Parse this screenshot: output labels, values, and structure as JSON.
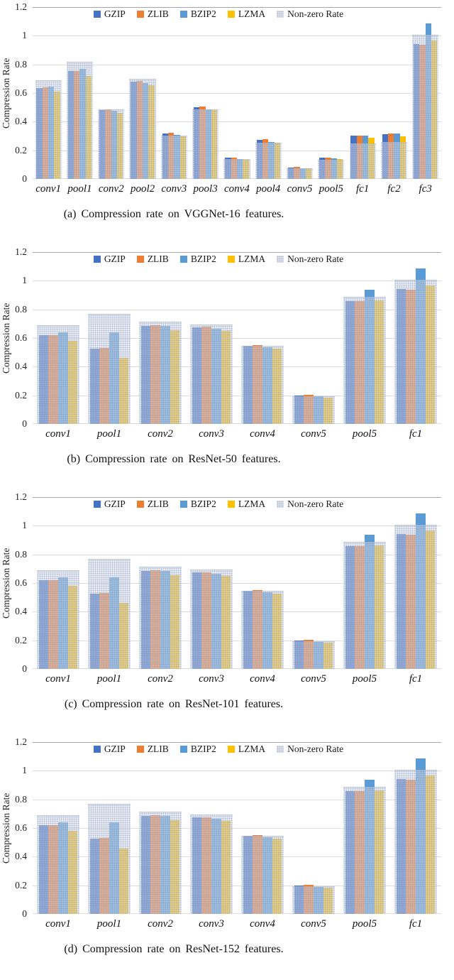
{
  "y_axis": {
    "title": "Compression Rate",
    "tick_labels": [
      "0",
      "0.2",
      "0.4",
      "0.6",
      "0.8",
      "1",
      "1.2"
    ],
    "tick_values": [
      0,
      0.2,
      0.4,
      0.6,
      0.8,
      1,
      1.2
    ],
    "max": 1.2
  },
  "legend": [
    {
      "name": "GZIP",
      "color": "#4472C4"
    },
    {
      "name": "ZLIB",
      "color": "#ED7D31"
    },
    {
      "name": "BZIP2",
      "color": "#5B9BD5"
    },
    {
      "name": "LZMA",
      "color": "#FFC000"
    },
    {
      "name": "Non-zero Rate",
      "color": "#DDE2EC"
    }
  ],
  "chart_data": [
    {
      "type": "bar",
      "id": "a",
      "caption": "(a) Compression rate on VGGNet-16 features.",
      "ylabel": "Compression Rate",
      "ylim": [
        0,
        1.2
      ],
      "legend_position": "top",
      "grid": true,
      "categories": [
        "conv1",
        "pool1",
        "conv2",
        "pool2",
        "conv3",
        "pool3",
        "conv4",
        "pool4",
        "conv5",
        "pool5",
        "fc1",
        "fc2",
        "fc3"
      ],
      "series": [
        {
          "name": "GZIP",
          "values": [
            0.635,
            0.755,
            0.48,
            0.68,
            0.315,
            0.5,
            0.148,
            0.272,
            0.08,
            0.148,
            0.303,
            0.313,
            0.94
          ]
        },
        {
          "name": "ZLIB",
          "values": [
            0.638,
            0.752,
            0.486,
            0.686,
            0.32,
            0.505,
            0.151,
            0.278,
            0.083,
            0.15,
            0.304,
            0.316,
            0.936
          ]
        },
        {
          "name": "BZIP2",
          "values": [
            0.645,
            0.768,
            0.476,
            0.671,
            0.306,
            0.487,
            0.141,
            0.257,
            0.075,
            0.142,
            0.305,
            0.315,
            1.085
          ]
        },
        {
          "name": "LZMA",
          "values": [
            0.608,
            0.718,
            0.462,
            0.655,
            0.298,
            0.48,
            0.136,
            0.252,
            0.072,
            0.139,
            0.287,
            0.298,
            0.965
          ]
        },
        {
          "name": "Non-zero Rate",
          "values": [
            0.685,
            0.815,
            0.48,
            0.695,
            0.3,
            0.48,
            0.135,
            0.25,
            0.07,
            0.13,
            0.243,
            0.255,
            1.0
          ]
        }
      ]
    },
    {
      "type": "bar",
      "id": "b",
      "caption": "(b) Compression rate on ResNet-50 features.",
      "ylabel": "Compression Rate",
      "ylim": [
        0,
        1.2
      ],
      "legend_position": "top",
      "grid": true,
      "categories": [
        "conv1",
        "pool1",
        "conv2",
        "conv3",
        "conv4",
        "conv5",
        "pool5",
        "fc1"
      ],
      "series": [
        {
          "name": "GZIP",
          "values": [
            0.62,
            0.528,
            0.685,
            0.675,
            0.547,
            0.2,
            0.858,
            0.94
          ]
        },
        {
          "name": "ZLIB",
          "values": [
            0.621,
            0.529,
            0.687,
            0.677,
            0.55,
            0.205,
            0.857,
            0.939
          ]
        },
        {
          "name": "BZIP2",
          "values": [
            0.64,
            0.64,
            0.684,
            0.667,
            0.537,
            0.191,
            0.935,
            1.085
          ]
        },
        {
          "name": "LZMA",
          "values": [
            0.58,
            0.46,
            0.654,
            0.65,
            0.527,
            0.184,
            0.862,
            0.965
          ]
        },
        {
          "name": "Non-zero Rate",
          "values": [
            0.685,
            0.765,
            0.71,
            0.69,
            0.54,
            0.19,
            0.885,
            1.0
          ]
        }
      ]
    },
    {
      "type": "bar",
      "id": "c",
      "caption": "(c) Compression rate on ResNet-101 features.",
      "ylabel": "Compression Rate",
      "ylim": [
        0,
        1.2
      ],
      "legend_position": "top",
      "grid": true,
      "categories": [
        "conv1",
        "pool1",
        "conv2",
        "conv3",
        "conv4",
        "conv5",
        "pool5",
        "fc1"
      ],
      "series": [
        {
          "name": "GZIP",
          "values": [
            0.618,
            0.528,
            0.685,
            0.674,
            0.546,
            0.199,
            0.858,
            0.94
          ]
        },
        {
          "name": "ZLIB",
          "values": [
            0.62,
            0.529,
            0.687,
            0.676,
            0.549,
            0.204,
            0.856,
            0.939
          ]
        },
        {
          "name": "BZIP2",
          "values": [
            0.64,
            0.64,
            0.683,
            0.666,
            0.536,
            0.19,
            0.935,
            1.085
          ]
        },
        {
          "name": "LZMA",
          "values": [
            0.58,
            0.46,
            0.653,
            0.649,
            0.527,
            0.183,
            0.861,
            0.965
          ]
        },
        {
          "name": "Non-zero Rate",
          "values": [
            0.685,
            0.765,
            0.708,
            0.688,
            0.54,
            0.19,
            0.885,
            1.0
          ]
        }
      ]
    },
    {
      "type": "bar",
      "id": "d",
      "caption": "(d) Compression rate on ResNet-152 features.",
      "ylabel": "Compression Rate",
      "ylim": [
        0,
        1.2
      ],
      "legend_position": "top",
      "grid": true,
      "categories": [
        "conv1",
        "pool1",
        "conv2",
        "conv3",
        "conv4",
        "conv5",
        "pool5",
        "fc1"
      ],
      "series": [
        {
          "name": "GZIP",
          "values": [
            0.619,
            0.528,
            0.685,
            0.674,
            0.547,
            0.2,
            0.857,
            0.94
          ]
        },
        {
          "name": "ZLIB",
          "values": [
            0.62,
            0.529,
            0.687,
            0.676,
            0.55,
            0.205,
            0.856,
            0.939
          ]
        },
        {
          "name": "BZIP2",
          "values": [
            0.64,
            0.64,
            0.683,
            0.666,
            0.537,
            0.19,
            0.935,
            1.085
          ]
        },
        {
          "name": "LZMA",
          "values": [
            0.58,
            0.458,
            0.654,
            0.65,
            0.527,
            0.184,
            0.862,
            0.967
          ]
        },
        {
          "name": "Non-zero Rate",
          "values": [
            0.685,
            0.765,
            0.708,
            0.688,
            0.54,
            0.19,
            0.885,
            1.0
          ]
        }
      ]
    }
  ]
}
